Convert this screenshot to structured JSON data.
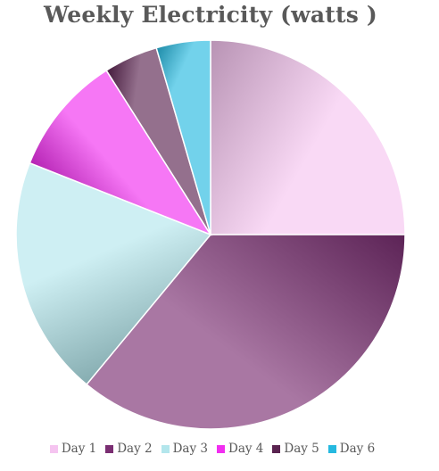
{
  "chart_data": {
    "type": "pie",
    "title": "Weekly Electricity (watts )",
    "categories": [
      "Day 1",
      "Day 2",
      "Day 3",
      "Day 4",
      "Day 5",
      "Day 6"
    ],
    "values": [
      25,
      36,
      20,
      10,
      4.5,
      4.5
    ],
    "colors": [
      "#f5c4f0",
      "#7a2e72",
      "#b3e6ec",
      "#f12ef0",
      "#5a2350",
      "#26b9e0"
    ],
    "start_angle_deg": 0,
    "direction": "clockwise",
    "legend_position": "bottom"
  }
}
